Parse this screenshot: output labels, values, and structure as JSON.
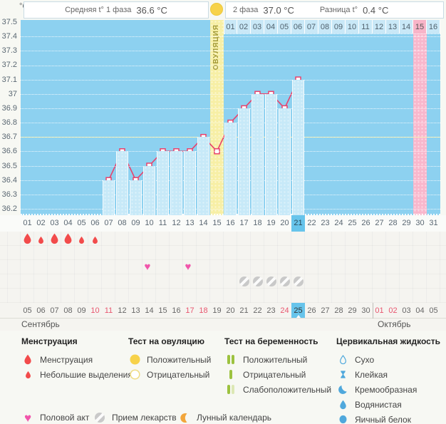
{
  "header": {
    "unit": "°C",
    "phase1_label": "Средняя t° 1 фаза",
    "phase1_value": "36.6 °C",
    "phase2_label": "2 фаза",
    "phase2_value": "37.0 °C",
    "diff_label": "Разница t°",
    "diff_value": "0.4 °C"
  },
  "chart_data": {
    "type": "line",
    "title": "График базальной температуры",
    "ylabel": "°C",
    "ylim": [
      36.2,
      37.5
    ],
    "ytick_labels": [
      "37.5",
      "37.4",
      "37.3",
      "37.2",
      "37.1",
      "37",
      "36.9",
      "36.8",
      "36.7",
      "36.6",
      "36.5",
      "36.4",
      "36.3",
      "36.2"
    ],
    "grid": true,
    "coverline": 36.7,
    "series": [
      {
        "name": "Базальная температура",
        "points": [
          [
            7,
            36.4
          ],
          [
            8,
            36.6
          ],
          [
            9,
            36.4
          ],
          [
            10,
            36.5
          ],
          [
            11,
            36.6
          ],
          [
            12,
            36.6
          ],
          [
            13,
            36.6
          ],
          [
            14,
            36.7
          ],
          [
            15,
            36.6
          ],
          [
            16,
            36.8
          ],
          [
            17,
            36.9
          ],
          [
            18,
            37.0
          ],
          [
            19,
            37.0
          ],
          [
            20,
            36.9
          ],
          [
            21,
            37.1
          ]
        ]
      }
    ],
    "cycle_length_shown": 31,
    "ovulation_day": 15,
    "ovulation_label": "ОВУЛЯЦИЯ",
    "expected_period_day": 30,
    "current_cycle_day": 21,
    "lunar_calendar_day": 20,
    "dpo_row": {
      "labels": [
        "01",
        "02",
        "03",
        "04",
        "05",
        "06",
        "07",
        "08",
        "09",
        "10",
        "11",
        "12",
        "13",
        "14",
        "15",
        "16"
      ],
      "highlighted_label": "15"
    }
  },
  "rows": {
    "cycle_day_labels": [
      "01",
      "02",
      "03",
      "04",
      "05",
      "06",
      "07",
      "08",
      "09",
      "10",
      "11",
      "12",
      "13",
      "14",
      "15",
      "16",
      "17",
      "18",
      "19",
      "20",
      "21",
      "22",
      "23",
      "24",
      "25",
      "26",
      "27",
      "28",
      "29",
      "30",
      "31"
    ],
    "current_day_label": "21",
    "menstruation_days": [
      {
        "day": 1,
        "size": "large"
      },
      {
        "day": 2,
        "size": "small"
      },
      {
        "day": 3,
        "size": "large"
      },
      {
        "day": 4,
        "size": "large"
      },
      {
        "day": 5,
        "size": "small"
      },
      {
        "day": 6,
        "size": "small"
      }
    ],
    "intercourse_days": [
      10,
      13
    ],
    "medication_days": [
      17,
      18,
      19,
      20,
      21
    ],
    "dates": [
      {
        "label": "05"
      },
      {
        "label": "06"
      },
      {
        "label": "07"
      },
      {
        "label": "08"
      },
      {
        "label": "09"
      },
      {
        "label": "10",
        "weekend": true
      },
      {
        "label": "11",
        "weekend": true
      },
      {
        "label": "12"
      },
      {
        "label": "13"
      },
      {
        "label": "14"
      },
      {
        "label": "15"
      },
      {
        "label": "16"
      },
      {
        "label": "17",
        "weekend": true
      },
      {
        "label": "18",
        "weekend": true
      },
      {
        "label": "19"
      },
      {
        "label": "20"
      },
      {
        "label": "21"
      },
      {
        "label": "22"
      },
      {
        "label": "23"
      },
      {
        "label": "24",
        "weekend": true
      },
      {
        "label": "25",
        "today": true
      },
      {
        "label": "26"
      },
      {
        "label": "27"
      },
      {
        "label": "28"
      },
      {
        "label": "29"
      },
      {
        "label": "30"
      },
      {
        "label": "01",
        "weekend": true
      },
      {
        "label": "02",
        "weekend": true
      },
      {
        "label": "03"
      },
      {
        "label": "04"
      },
      {
        "label": "05"
      }
    ],
    "months": [
      {
        "name": "Сентябрь"
      },
      {
        "name": "Октябрь"
      }
    ],
    "month_split_after_index": 25
  },
  "legend": {
    "sections": [
      {
        "title": "Менструация",
        "items": [
          {
            "icon": "drop-large",
            "label": "Менструация"
          },
          {
            "icon": "drop-small",
            "label": "Небольшие выделения"
          }
        ]
      },
      {
        "title": "Тест на овуляцию",
        "items": [
          {
            "icon": "circle-filled-yellow",
            "label": "Положительный"
          },
          {
            "icon": "circle-outline-yellow",
            "label": "Отрицательный"
          }
        ]
      },
      {
        "title": "Тест на беременность",
        "items": [
          {
            "icon": "bars-two-green",
            "label": "Положительный"
          },
          {
            "icon": "bar-one-green",
            "label": "Отрицательный"
          },
          {
            "icon": "bars-green-pale",
            "label": "Слабоположительный"
          }
        ]
      },
      {
        "title": "Цервикальная жидкость",
        "items": [
          {
            "icon": "drop-outline-blue",
            "label": "Сухо"
          },
          {
            "icon": "hourglass-blue",
            "label": "Клейкая"
          },
          {
            "icon": "crescent-blue",
            "label": "Кремообразная"
          },
          {
            "icon": "drop-filled-blue",
            "label": "Водянистая"
          },
          {
            "icon": "oval-filled-blue",
            "label": "Яичный белок"
          }
        ]
      }
    ],
    "footer_items": [
      {
        "icon": "heart-pink",
        "label": "Половой акт"
      },
      {
        "icon": "pill-grey",
        "label": "Прием лекарств"
      },
      {
        "icon": "moon-orange",
        "label": "Лунный календарь"
      }
    ]
  },
  "colors": {
    "chart_bg": "#8DD1F0",
    "bar": "#C7E9F8",
    "ovulation_band": "#F7EFA5",
    "period_band": "#F9B7CC",
    "coverline": "#EFE98F",
    "temperature_line": "#E8426C",
    "today_highlight": "#67C4EB",
    "weekend_text": "#E8566F",
    "menstruation": "#F24B4B",
    "intercourse": "#F155AB",
    "medication": "#C9C9C9",
    "moon": "#F2A63B",
    "ovulation_test_positive": "#F7D24A",
    "pregnancy_test_bar": "#9CC23F",
    "pregnancy_test_bar_pale": "#DCE8B4",
    "cervical_fluid": "#4FA8DC"
  }
}
